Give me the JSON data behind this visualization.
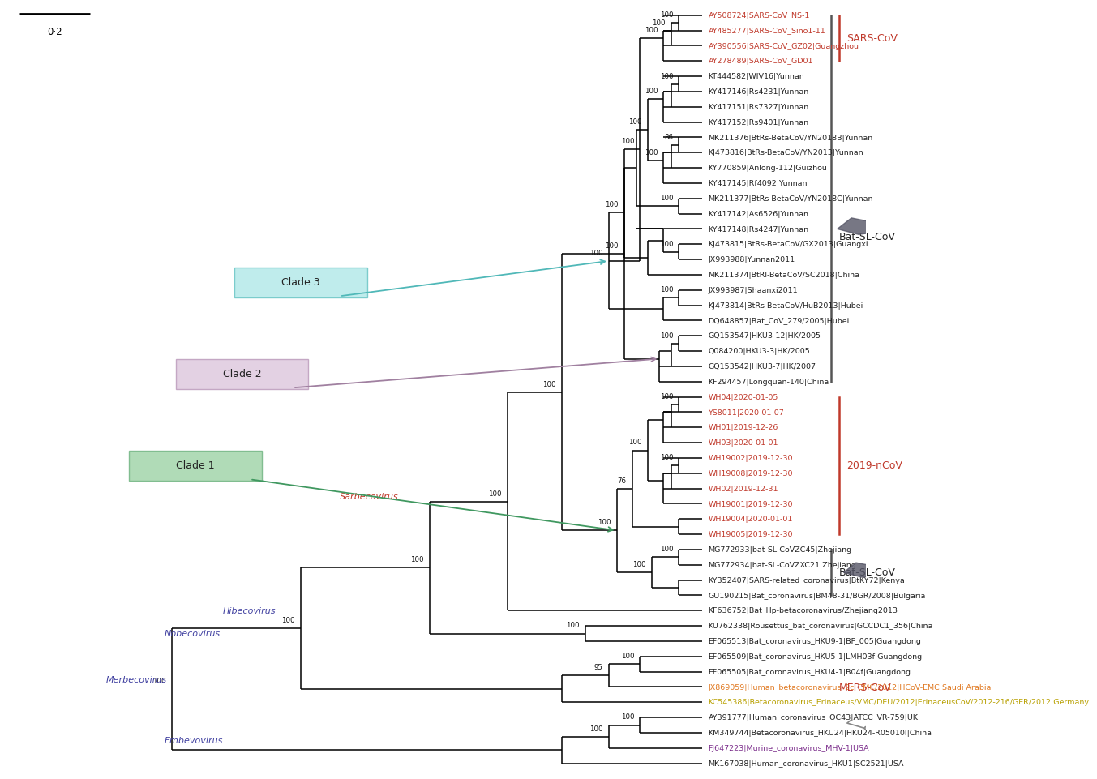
{
  "background": "#ffffff",
  "figsize": [
    10.8,
    9.86
  ],
  "taxa": [
    {
      "name": "AY508724|SARS-CoV_NS-1",
      "y": 49,
      "color": "#c0392b",
      "group": "sars"
    },
    {
      "name": "AY485277|SARS-CoV_Sino1-11",
      "y": 48,
      "color": "#c0392b",
      "group": "sars"
    },
    {
      "name": "AY390556|SARS-CoV_GZ02|Guangzhou",
      "y": 47,
      "color": "#c0392b",
      "group": "sars"
    },
    {
      "name": "AY278489|SARS-CoV_GD01",
      "y": 46,
      "color": "#c0392b",
      "group": "sars"
    },
    {
      "name": "KT444582|WIV16|Yunnan",
      "y": 45,
      "color": "#222222",
      "group": "bat_sl"
    },
    {
      "name": "KY417146|Rs4231|Yunnan",
      "y": 44,
      "color": "#222222",
      "group": "bat_sl"
    },
    {
      "name": "KY417151|Rs7327|Yunnan",
      "y": 43,
      "color": "#222222",
      "group": "bat_sl"
    },
    {
      "name": "KY417152|Rs9401|Yunnan",
      "y": 42,
      "color": "#222222",
      "group": "bat_sl"
    },
    {
      "name": "MK211376|BtRs-BetaCoV/YN2018B|Yunnan",
      "y": 41,
      "color": "#222222",
      "group": "bat_sl"
    },
    {
      "name": "KJ473816|BtRs-BetaCoV/YN2013|Yunnan",
      "y": 40,
      "color": "#222222",
      "group": "bat_sl"
    },
    {
      "name": "KY770859|Anlong-112|Guizhou",
      "y": 39,
      "color": "#222222",
      "group": "bat_sl"
    },
    {
      "name": "KY417145|Rf4092|Yunnan",
      "y": 38,
      "color": "#222222",
      "group": "bat_sl"
    },
    {
      "name": "MK211377|BtRs-BetaCoV/YN2018C|Yunnan",
      "y": 37,
      "color": "#222222",
      "group": "bat_sl"
    },
    {
      "name": "KY417142|As6526|Yunnan",
      "y": 36,
      "color": "#222222",
      "group": "bat_sl"
    },
    {
      "name": "KY417148|Rs4247|Yunnan",
      "y": 35,
      "color": "#222222",
      "group": "bat_sl"
    },
    {
      "name": "KJ473815|BtRs-BetaCoV/GX2013|Guangxi",
      "y": 34,
      "color": "#222222",
      "group": "bat_sl"
    },
    {
      "name": "JX993988|Yunnan2011",
      "y": 33,
      "color": "#222222",
      "group": "bat_sl"
    },
    {
      "name": "MK211374|BtRl-BetaCoV/SC2018|China",
      "y": 32,
      "color": "#222222",
      "group": "bat_sl"
    },
    {
      "name": "JX993987|Shaanxi2011",
      "y": 31,
      "color": "#222222",
      "group": "bat_sl"
    },
    {
      "name": "KJ473814|BtRs-BetaCoV/HuB2013|Hubei",
      "y": 30,
      "color": "#222222",
      "group": "bat_sl"
    },
    {
      "name": "DQ648857|Bat_CoV_279/2005|Hubei",
      "y": 29,
      "color": "#222222",
      "group": "bat_sl"
    },
    {
      "name": "GQ153547|HKU3-12|HK/2005",
      "y": 28,
      "color": "#222222",
      "group": "bat_sl"
    },
    {
      "name": "Q084200|HKU3-3|HK/2005",
      "y": 27,
      "color": "#222222",
      "group": "bat_sl"
    },
    {
      "name": "GQ153542|HKU3-7|HK/2007",
      "y": 26,
      "color": "#222222",
      "group": "bat_sl"
    },
    {
      "name": "KF294457|Longquan-140|China",
      "y": 25,
      "color": "#222222",
      "group": "bat_sl"
    },
    {
      "name": "WH04|2020-01-05",
      "y": 24,
      "color": "#c0392b",
      "group": "ncov"
    },
    {
      "name": "YS8011|2020-01-07",
      "y": 23,
      "color": "#c0392b",
      "group": "ncov"
    },
    {
      "name": "WH01|2019-12-26",
      "y": 22,
      "color": "#c0392b",
      "group": "ncov"
    },
    {
      "name": "WH03|2020-01-01",
      "y": 21,
      "color": "#c0392b",
      "group": "ncov"
    },
    {
      "name": "WH19002|2019-12-30",
      "y": 20,
      "color": "#c0392b",
      "group": "ncov"
    },
    {
      "name": "WH19008|2019-12-30",
      "y": 19,
      "color": "#c0392b",
      "group": "ncov"
    },
    {
      "name": "WH02|2019-12-31",
      "y": 18,
      "color": "#c0392b",
      "group": "ncov"
    },
    {
      "name": "WH19001|2019-12-30",
      "y": 17,
      "color": "#c0392b",
      "group": "ncov"
    },
    {
      "name": "WH19004|2020-01-01",
      "y": 16,
      "color": "#c0392b",
      "group": "ncov"
    },
    {
      "name": "WH19005|2019-12-30",
      "y": 15,
      "color": "#c0392b",
      "group": "ncov"
    },
    {
      "name": "MG772933|bat-SL-CoVZC45|Zhejiang",
      "y": 14,
      "color": "#222222",
      "group": "bat_sl2"
    },
    {
      "name": "MG772934|bat-SL-CoVZXC21|Zhejiang",
      "y": 13,
      "color": "#222222",
      "group": "bat_sl2"
    },
    {
      "name": "KY352407|SARS-related_coronavirus|BtKY72|Kenya",
      "y": 12,
      "color": "#222222",
      "group": "bat_sl2"
    },
    {
      "name": "GU190215|Bat_coronavirus|BM48-31/BGR/2008|Bulgaria",
      "y": 11,
      "color": "#222222",
      "group": "bat_sl2"
    },
    {
      "name": "KF636752|Bat_Hp-betacoronavirus/Zhejiang2013",
      "y": 10,
      "color": "#222222",
      "group": "hibe"
    },
    {
      "name": "KU762338|Rousettus_bat_coronavirus|GCCDC1_356|China",
      "y": 9,
      "color": "#222222",
      "group": "nobe"
    },
    {
      "name": "EF065513|Bat_coronavirus_HKU9-1|BF_005|Guangdong",
      "y": 8,
      "color": "#222222",
      "group": "nobe"
    },
    {
      "name": "EF065509|Bat_coronavirus_HKU5-1|LMH03f|Guangdong",
      "y": 7,
      "color": "#222222",
      "group": "merbe"
    },
    {
      "name": "EF065505|Bat_coronavirus_HKU4-1|B04f|Guangdong",
      "y": 6,
      "color": "#222222",
      "group": "merbe"
    },
    {
      "name": "JX869059|Human_betacoronavirus_2c_EMC/2012|HCoV-EMC|Saudi Arabia",
      "y": 5,
      "color": "#e07820",
      "group": "merbe"
    },
    {
      "name": "KC545386|Betacoronavirus_Erinaceus/VMC/DEU/2012|ErinaceusCoV/2012-216/GER/2012|Germany",
      "y": 4,
      "color": "#b8a000",
      "group": "merbe"
    },
    {
      "name": "AY391777|Human_coronavirus_OC43|ATCC_VR-759|UK",
      "y": 3,
      "color": "#222222",
      "group": "embe"
    },
    {
      "name": "KM349744|Betacoronavirus_HKU24|HKU24-R05010I|China",
      "y": 2,
      "color": "#222222",
      "group": "embe"
    },
    {
      "name": "FJ647223|Murine_coronavirus_MHV-1|USA",
      "y": 1,
      "color": "#7b2d8b",
      "group": "embe"
    },
    {
      "name": "MK167038|Human_coronavirus_HKU1|SC2521|USA",
      "y": 0,
      "color": "#222222",
      "group": "embe"
    }
  ],
  "subgenus_labels": [
    {
      "name": "Sarbecovirus",
      "iy": 17.5,
      "ix": 8.5,
      "color": "#c0392b"
    },
    {
      "name": "Hibecovirus",
      "iy": 10.0,
      "ix": 5.5,
      "color": "#4040a0"
    },
    {
      "name": "Nobecovirus",
      "iy": 8.5,
      "ix": 4.0,
      "color": "#4040a0"
    },
    {
      "name": "Merbecovirus",
      "iy": 5.5,
      "ix": 2.5,
      "color": "#4040a0"
    },
    {
      "name": "Embevovirus",
      "iy": 1.5,
      "ix": 4.0,
      "color": "#4040a0"
    }
  ]
}
